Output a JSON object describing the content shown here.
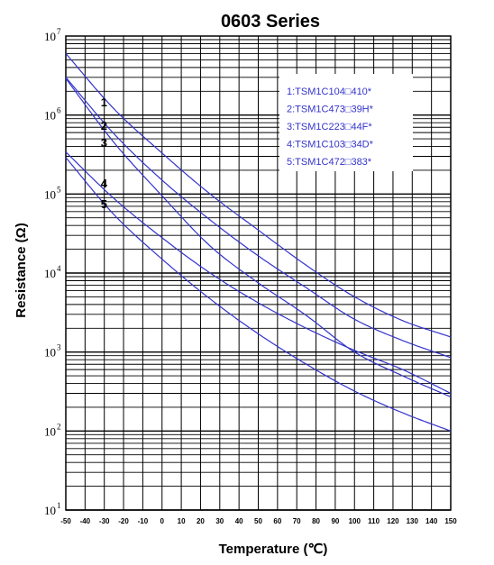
{
  "chart_data": {
    "type": "line",
    "title": "0603 Series",
    "xlabel": "Temperature (℃)",
    "ylabel": "Resistance (Ω)",
    "x_scale": "linear",
    "y_scale": "log",
    "xlim": [
      -50,
      150
    ],
    "ylim": [
      10,
      10000000
    ],
    "x_ticks": [
      "-50",
      "-40",
      "-30",
      "-20",
      "-10",
      "0",
      "10",
      "20",
      "30",
      "40",
      "50",
      "60",
      "70",
      "80",
      "90",
      "100",
      "110",
      "120",
      "130",
      "140",
      "150"
    ],
    "y_ticks": [
      {
        "base": "10",
        "exp": "7",
        "value": 10000000
      },
      {
        "base": "10",
        "exp": "6",
        "value": 1000000
      },
      {
        "base": "10",
        "exp": "5",
        "value": 100000
      },
      {
        "base": "10",
        "exp": "4",
        "value": 10000
      },
      {
        "base": "10",
        "exp": "3",
        "value": 1000
      },
      {
        "base": "10",
        "exp": "2",
        "value": 100
      },
      {
        "base": "10",
        "exp": "1",
        "value": 10
      }
    ],
    "grid": true,
    "legend_position": "top-right",
    "series_color": "#3333cc",
    "series": [
      {
        "name": "1:TSM1C104□410*",
        "label": "1",
        "label_x": -30,
        "x": [
          -50,
          -25,
          0,
          25,
          50,
          75,
          100,
          125,
          150
        ],
        "values": [
          6000000,
          1200000,
          330000,
          100000,
          35000,
          12500,
          5000,
          2500,
          1550
        ]
      },
      {
        "name": "2:TSM1C473□39H*",
        "label": "2",
        "label_x": -30,
        "x": [
          -50,
          -25,
          0,
          25,
          50,
          75,
          100,
          125,
          150
        ],
        "values": [
          3000000,
          580000,
          150000,
          47000,
          16500,
          6500,
          2600,
          1400,
          850
        ]
      },
      {
        "name": "3:TSM1C223□44F*",
        "label": "3",
        "label_x": -30,
        "x": [
          -50,
          -25,
          0,
          25,
          50,
          75,
          100,
          125,
          150
        ],
        "values": [
          2900000,
          450000,
          95000,
          22000,
          7500,
          2900,
          1000,
          500,
          270
        ]
      },
      {
        "name": "4:TSM1C103□34D*",
        "label": "4",
        "label_x": -30,
        "x": [
          -50,
          -25,
          0,
          25,
          50,
          75,
          100,
          125,
          150
        ],
        "values": [
          340000,
          88000,
          28000,
          10000,
          4200,
          2000,
          1050,
          600,
          300
        ]
      },
      {
        "name": "5:TSM1C472□383*",
        "label": "5",
        "label_x": -30,
        "x": [
          -50,
          -25,
          0,
          25,
          50,
          75,
          100,
          125,
          150
        ],
        "values": [
          290000,
          55000,
          15000,
          4700,
          1700,
          700,
          320,
          170,
          100
        ]
      }
    ]
  }
}
